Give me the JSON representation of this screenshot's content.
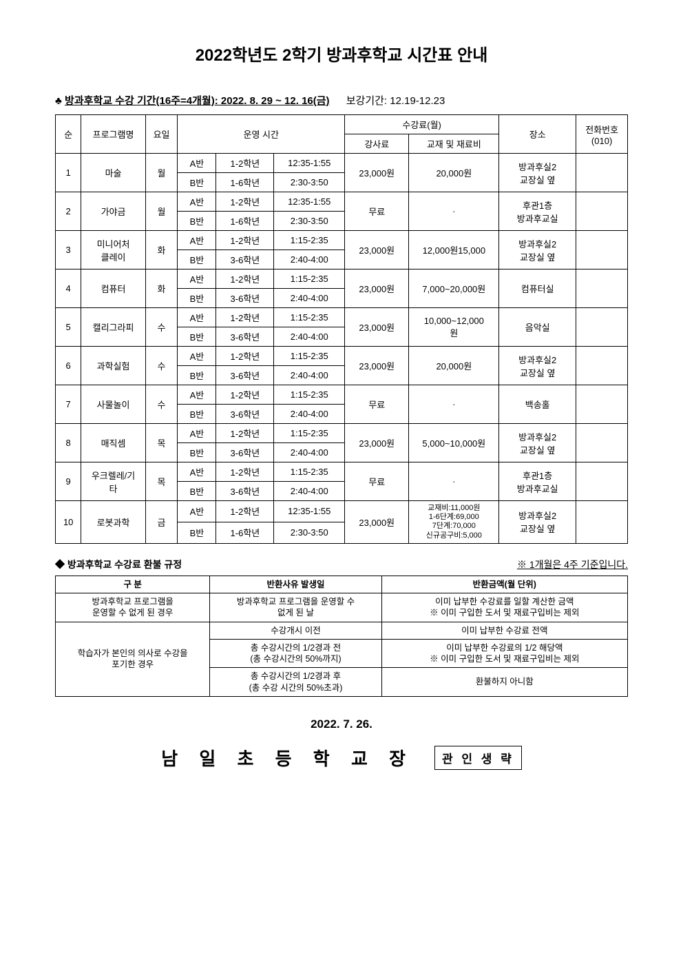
{
  "title": "2022학년도 2학기 방과후학교 시간표 안내",
  "period": {
    "icon": "♣",
    "main": "방과후학교 수강 기간(16주=4개월): 2022. 8. 29 ~ 12. 16(금)",
    "makeup": "보강기간: 12.19-12.23"
  },
  "schedule": {
    "headers": {
      "num": "순",
      "program": "프로그램명",
      "day": "요일",
      "optime": "운영 시간",
      "fee_top": "수강료(월)",
      "fee_left": "강사료",
      "fee_right": "교재 및 재료비",
      "location": "장소",
      "phone": "전화번호\n(010)"
    },
    "rows": [
      {
        "num": "1",
        "program": "마술",
        "day": "월",
        "a": {
          "cls": "A반",
          "grade": "1-2학년",
          "time": "12:35-1:55"
        },
        "b": {
          "cls": "B반",
          "grade": "1-6학년",
          "time": "2:30-3:50"
        },
        "fee": "23,000원",
        "material": "20,000원",
        "loc": "방과후실2\n교장실 옆",
        "phone": ""
      },
      {
        "num": "2",
        "program": "가야금",
        "day": "월",
        "a": {
          "cls": "A반",
          "grade": "1-2학년",
          "time": "12:35-1:55"
        },
        "b": {
          "cls": "B반",
          "grade": "1-6학년",
          "time": "2:30-3:50"
        },
        "fee": "무료",
        "material": "·",
        "loc": "후관1층\n방과후교실",
        "phone": ""
      },
      {
        "num": "3",
        "program": "미니어처\n클레이",
        "day": "화",
        "a": {
          "cls": "A반",
          "grade": "1-2학년",
          "time": "1:15-2:35"
        },
        "b": {
          "cls": "B반",
          "grade": "3-6학년",
          "time": "2:40-4:00"
        },
        "fee": "23,000원",
        "material": "12,000원15,000",
        "loc": "방과후실2\n교장실 옆",
        "phone": ""
      },
      {
        "num": "4",
        "program": "컴퓨터",
        "day": "화",
        "a": {
          "cls": "A반",
          "grade": "1-2학년",
          "time": "1:15-2:35"
        },
        "b": {
          "cls": "B반",
          "grade": "3-6학년",
          "time": "2:40-4:00"
        },
        "fee": "23,000원",
        "material": "7,000~20,000원",
        "loc": "컴퓨터실",
        "phone": ""
      },
      {
        "num": "5",
        "program": "캘리그라피",
        "day": "수",
        "a": {
          "cls": "A반",
          "grade": "1-2학년",
          "time": "1:15-2:35"
        },
        "b": {
          "cls": "B반",
          "grade": "3-6학년",
          "time": "2:40-4:00"
        },
        "fee": "23,000원",
        "material": "10,000~12,000\n원",
        "loc": "음악실",
        "phone": ""
      },
      {
        "num": "6",
        "program": "과학실험",
        "day": "수",
        "a": {
          "cls": "A반",
          "grade": "1-2학년",
          "time": "1:15-2:35"
        },
        "b": {
          "cls": "B반",
          "grade": "3-6학년",
          "time": "2:40-4:00"
        },
        "fee": "23,000원",
        "material": "20,000원",
        "loc": "방과후실2\n교장실 옆",
        "phone": ""
      },
      {
        "num": "7",
        "program": "사물놀이",
        "day": "수",
        "a": {
          "cls": "A반",
          "grade": "1-2학년",
          "time": "1:15-2:35"
        },
        "b": {
          "cls": "B반",
          "grade": "3-6학년",
          "time": "2:40-4:00"
        },
        "fee": "무료",
        "material": "·",
        "loc": "백송홀",
        "phone": ""
      },
      {
        "num": "8",
        "program": "매직셈",
        "day": "목",
        "a": {
          "cls": "A반",
          "grade": "1-2학년",
          "time": "1:15-2:35"
        },
        "b": {
          "cls": "B반",
          "grade": "3-6학년",
          "time": "2:40-4:00"
        },
        "fee": "23,000원",
        "material": "5,000~10,000원",
        "loc": "방과후실2\n교장실 옆",
        "phone": ""
      },
      {
        "num": "9",
        "program": "우크렐레/기\n타",
        "day": "목",
        "a": {
          "cls": "A반",
          "grade": "1-2학년",
          "time": "1:15-2:35"
        },
        "b": {
          "cls": "B반",
          "grade": "3-6학년",
          "time": "2:40-4:00"
        },
        "fee": "무료",
        "material": "·",
        "loc": "후관1층\n방과후교실",
        "phone": ""
      },
      {
        "num": "10",
        "program": "로봇과학",
        "day": "금",
        "a": {
          "cls": "A반",
          "grade": "1-2학년",
          "time": "12:35-1:55"
        },
        "b": {
          "cls": "B반",
          "grade": "1-6학년",
          "time": "2:30-3:50"
        },
        "fee": "23,000원",
        "material": "교재비:11,000원\n1-6단계:69,000\n7단계:70,000\n신규공구비:5,000",
        "loc": "방과후실2\n교장실 옆",
        "phone": ""
      }
    ]
  },
  "refund": {
    "title": "◆ 방과후학교 수강료 환불 규정",
    "note": "※ 1개월은 4주 기준입니다.",
    "headers": {
      "cat": "구   분",
      "when": "반환사유 발생일",
      "amt": "반환금액(월 단위)"
    },
    "rows": [
      {
        "cat": "방과후학교 프로그램을\n운영할 수 없게 된 경우",
        "when": "방과후학교 프로그램을 운영할 수\n없게 된 날",
        "amt": "이미 납부한 수강료를 일할 계산한 금액\n※ 이미 구입한 도서 및 재료구입비는 제외"
      },
      {
        "cat": "학습자가 본인의 의사로 수강을\n포기한 경우",
        "when": "수강개시 이전",
        "amt": "이미 납부한 수강료 전액"
      },
      {
        "cat": "",
        "when": "총 수강시간의 1/2경과 전\n(총 수강시간의 50%까지)",
        "amt": "이미 납부한 수강료의 1/2 해당액\n※ 이미 구입한 도서 및 재료구입비는 제외"
      },
      {
        "cat": "",
        "when": "총 수강시간의 1/2경과 후\n(총 수강 시간의 50%초과)",
        "amt": "환불하지 아니함"
      }
    ]
  },
  "date": "2022.  7.  26.",
  "school": "남 일 초 등 학 교 장",
  "seal": "관 인 생 략"
}
